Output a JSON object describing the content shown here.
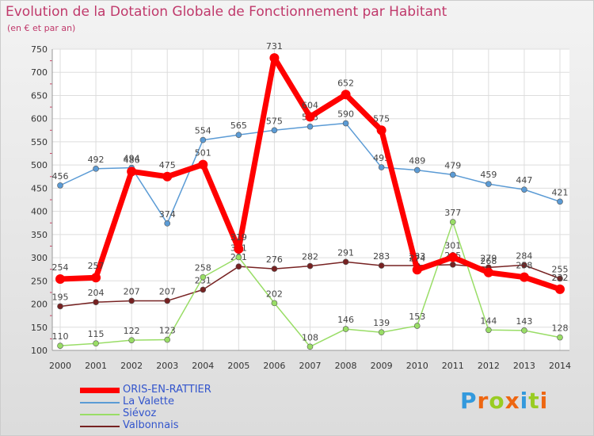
{
  "chart_data": {
    "type": "line",
    "title": "Evolution de la Dotation Globale de Fonctionnement par Habitant",
    "subtitle": "(en € et par an)",
    "x": [
      "2000",
      "2001",
      "2002",
      "2003",
      "2004",
      "2005",
      "2006",
      "2007",
      "2008",
      "2009",
      "2010",
      "2011",
      "2012",
      "2013",
      "2014"
    ],
    "ylim": [
      100,
      750
    ],
    "yticks": [
      100,
      150,
      200,
      250,
      300,
      350,
      400,
      450,
      500,
      550,
      600,
      650,
      700,
      750
    ],
    "grid": true,
    "legend_placement": "bottom-left",
    "series": [
      {
        "name": "ORIS-EN-RATTIER",
        "color": "#ff0000",
        "values": [
          254,
          257,
          486,
          475,
          501,
          319,
          731,
          604,
          652,
          575,
          274,
          301,
          268,
          258,
          232
        ]
      },
      {
        "name": "La Valette",
        "color": "#5b9bd5",
        "values": [
          456,
          492,
          494,
          374,
          554,
          565,
          575,
          583,
          590,
          495,
          489,
          479,
          459,
          447,
          421
        ]
      },
      {
        "name": "Siévoz",
        "color": "#99dd66",
        "values": [
          110,
          115,
          122,
          123,
          258,
          301,
          202,
          108,
          146,
          139,
          153,
          377,
          144,
          143,
          128
        ]
      },
      {
        "name": "Valbonnais",
        "color": "#772222",
        "values": [
          195,
          204,
          207,
          207,
          231,
          281,
          276,
          282,
          291,
          283,
          283,
          285,
          279,
          284,
          255
        ]
      }
    ]
  },
  "logo": {
    "text": "Proxiti",
    "colors": [
      "#3399dd",
      "#ee6611",
      "#99cc22",
      "#ee6611",
      "#3399dd",
      "#99cc22",
      "#ee6611"
    ]
  }
}
